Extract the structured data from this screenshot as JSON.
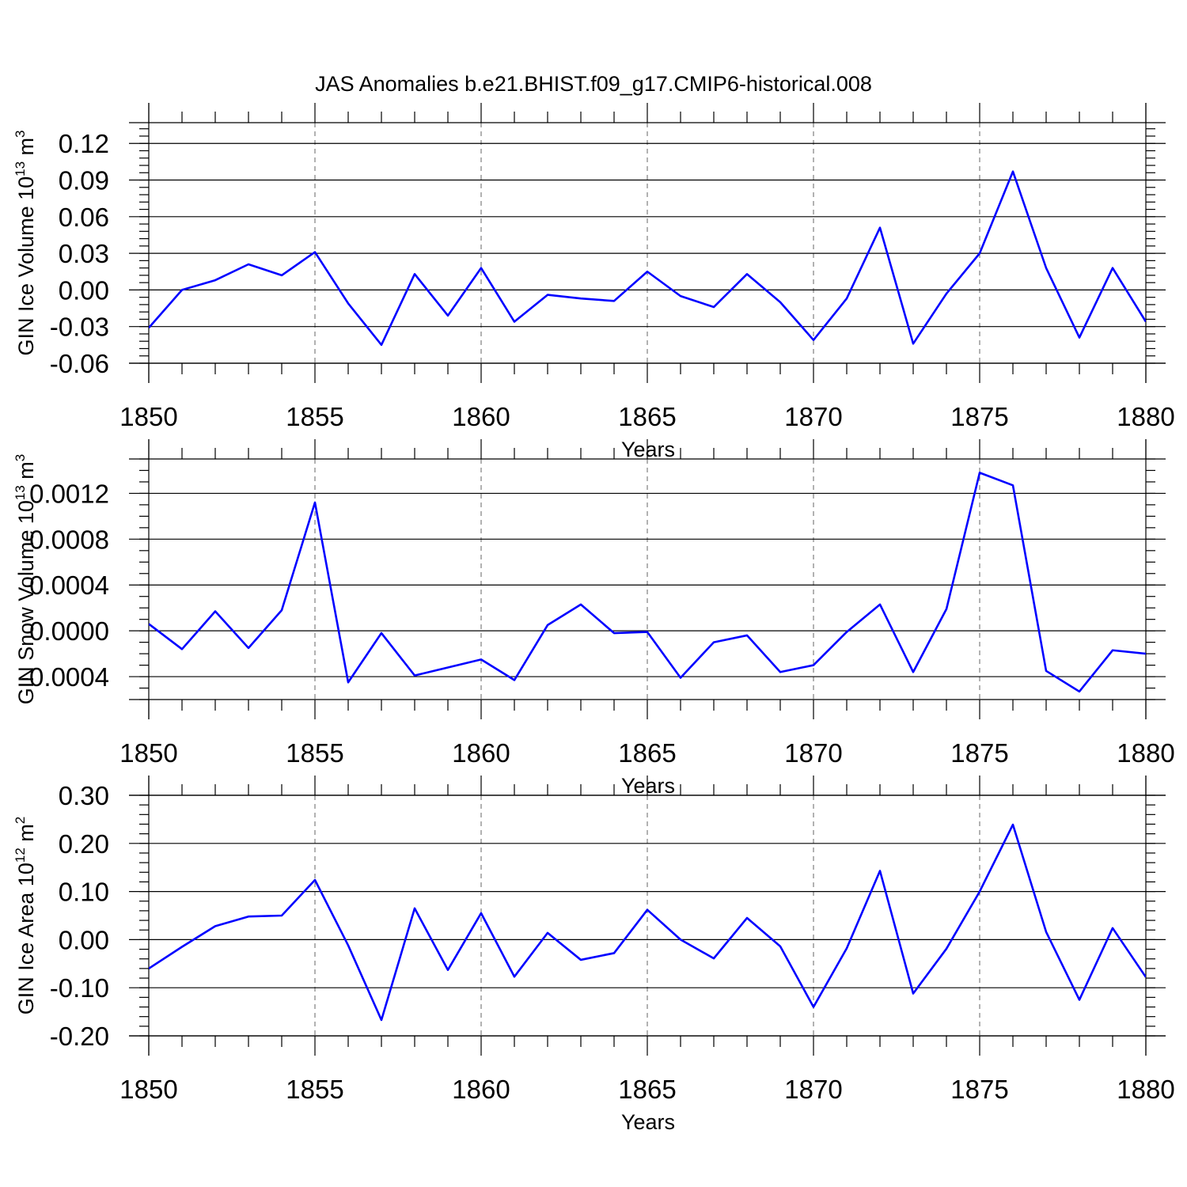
{
  "title": "JAS Anomalies b.e21.BHIST.f09_g17.CMIP6-historical.008",
  "colors": {
    "line": "#0000ff",
    "axis": "#000000",
    "grid": "#666666"
  },
  "chart_data": [
    {
      "type": "line",
      "name": "ice-volume",
      "ylabel": {
        "main": "GIN Ice Volume 10",
        "exp": "13",
        "unit": " m",
        "unit_exp": "3"
      },
      "xlabel": "Years",
      "xlim": [
        1850,
        1880
      ],
      "ylim": [
        -0.06,
        0.137
      ],
      "yticks": [
        0.12,
        0.09,
        0.06,
        0.03,
        0.0,
        -0.03,
        -0.06
      ],
      "ytick_labels": [
        "0.12",
        "0.09",
        "0.06",
        "0.03",
        "0.00",
        "-0.03",
        "-0.06"
      ],
      "yminor": 0.006,
      "xticks": [
        1850,
        1855,
        1860,
        1865,
        1870,
        1875,
        1880
      ],
      "xtick_labels": [
        "1850",
        "1855",
        "1860",
        "1865",
        "1870",
        "1875",
        "1880"
      ],
      "grid_x": [
        1855,
        1860,
        1865,
        1870,
        1875
      ],
      "x": [
        1850,
        1851,
        1852,
        1853,
        1854,
        1855,
        1856,
        1857,
        1858,
        1859,
        1860,
        1861,
        1862,
        1863,
        1864,
        1865,
        1866,
        1867,
        1868,
        1869,
        1870,
        1871,
        1872,
        1873,
        1874,
        1875,
        1876,
        1877,
        1878,
        1879,
        1880
      ],
      "values": [
        -0.031,
        0.0,
        0.008,
        0.021,
        0.012,
        0.031,
        -0.011,
        -0.045,
        0.013,
        -0.021,
        0.018,
        -0.026,
        -0.004,
        -0.007,
        -0.009,
        0.015,
        -0.005,
        -0.014,
        0.013,
        -0.01,
        -0.041,
        -0.007,
        0.051,
        -0.044,
        -0.003,
        0.03,
        0.097,
        0.018,
        -0.039,
        0.018,
        -0.026
      ]
    },
    {
      "type": "line",
      "name": "snow-volume",
      "ylabel": {
        "main": "GIN Snow Volume 10",
        "exp": "13",
        "unit": " m",
        "unit_exp": "3"
      },
      "xlabel": "Years",
      "xlim": [
        1850,
        1880
      ],
      "ylim": [
        -0.0006,
        0.0015
      ],
      "yticks": [
        0.0012,
        0.0008,
        0.0004,
        0.0,
        -0.0004
      ],
      "ytick_labels": [
        "0.0012",
        "0.0008",
        "0.0004",
        "0.0000",
        "-0.0004"
      ],
      "yminor": 0.0001,
      "xticks": [
        1850,
        1855,
        1860,
        1865,
        1870,
        1875,
        1880
      ],
      "xtick_labels": [
        "1850",
        "1855",
        "1860",
        "1865",
        "1870",
        "1875",
        "1880"
      ],
      "grid_x": [
        1855,
        1860,
        1865,
        1870,
        1875
      ],
      "x": [
        1850,
        1851,
        1852,
        1853,
        1854,
        1855,
        1856,
        1857,
        1858,
        1859,
        1860,
        1861,
        1862,
        1863,
        1864,
        1865,
        1866,
        1867,
        1868,
        1869,
        1870,
        1871,
        1872,
        1873,
        1874,
        1875,
        1876,
        1877,
        1878,
        1879,
        1880
      ],
      "values": [
        6e-05,
        -0.00016,
        0.00017,
        -0.00015,
        0.00018,
        0.00112,
        -0.00045,
        -2e-05,
        -0.00039,
        -0.00032,
        -0.00025,
        -0.00043,
        5e-05,
        0.00023,
        -2e-05,
        -1e-05,
        -0.00041,
        -0.0001,
        -4e-05,
        -0.00036,
        -0.0003,
        -1e-05,
        0.00023,
        -0.00036,
        0.00019,
        0.00138,
        0.00127,
        -0.00035,
        -0.00053,
        -0.00017,
        -0.0002
      ]
    },
    {
      "type": "line",
      "name": "ice-area",
      "ylabel": {
        "main": "GIN Ice Area 10",
        "exp": "12",
        "unit": " m",
        "unit_exp": "2"
      },
      "xlabel": "Years",
      "xlim": [
        1850,
        1880
      ],
      "ylim": [
        -0.2,
        0.3
      ],
      "yticks": [
        0.3,
        0.2,
        0.1,
        0.0,
        -0.1,
        -0.2
      ],
      "ytick_labels": [
        "0.30",
        "0.20",
        "0.10",
        "0.00",
        "-0.10",
        "-0.20"
      ],
      "yminor": 0.02,
      "xticks": [
        1850,
        1855,
        1860,
        1865,
        1870,
        1875,
        1880
      ],
      "xtick_labels": [
        "1850",
        "1855",
        "1860",
        "1865",
        "1870",
        "1875",
        "1880"
      ],
      "grid_x": [
        1855,
        1860,
        1865,
        1870,
        1875
      ],
      "x": [
        1850,
        1851,
        1852,
        1853,
        1854,
        1855,
        1856,
        1857,
        1858,
        1859,
        1860,
        1861,
        1862,
        1863,
        1864,
        1865,
        1866,
        1867,
        1868,
        1869,
        1870,
        1871,
        1872,
        1873,
        1874,
        1875,
        1876,
        1877,
        1878,
        1879,
        1880
      ],
      "values": [
        -0.06,
        -0.015,
        0.028,
        0.048,
        0.05,
        0.124,
        -0.012,
        -0.167,
        0.065,
        -0.063,
        0.055,
        -0.077,
        0.014,
        -0.042,
        -0.028,
        0.062,
        0.0,
        -0.039,
        0.045,
        -0.014,
        -0.14,
        -0.018,
        0.143,
        -0.112,
        -0.019,
        0.1,
        0.239,
        0.016,
        -0.125,
        0.024,
        -0.078
      ]
    }
  ]
}
